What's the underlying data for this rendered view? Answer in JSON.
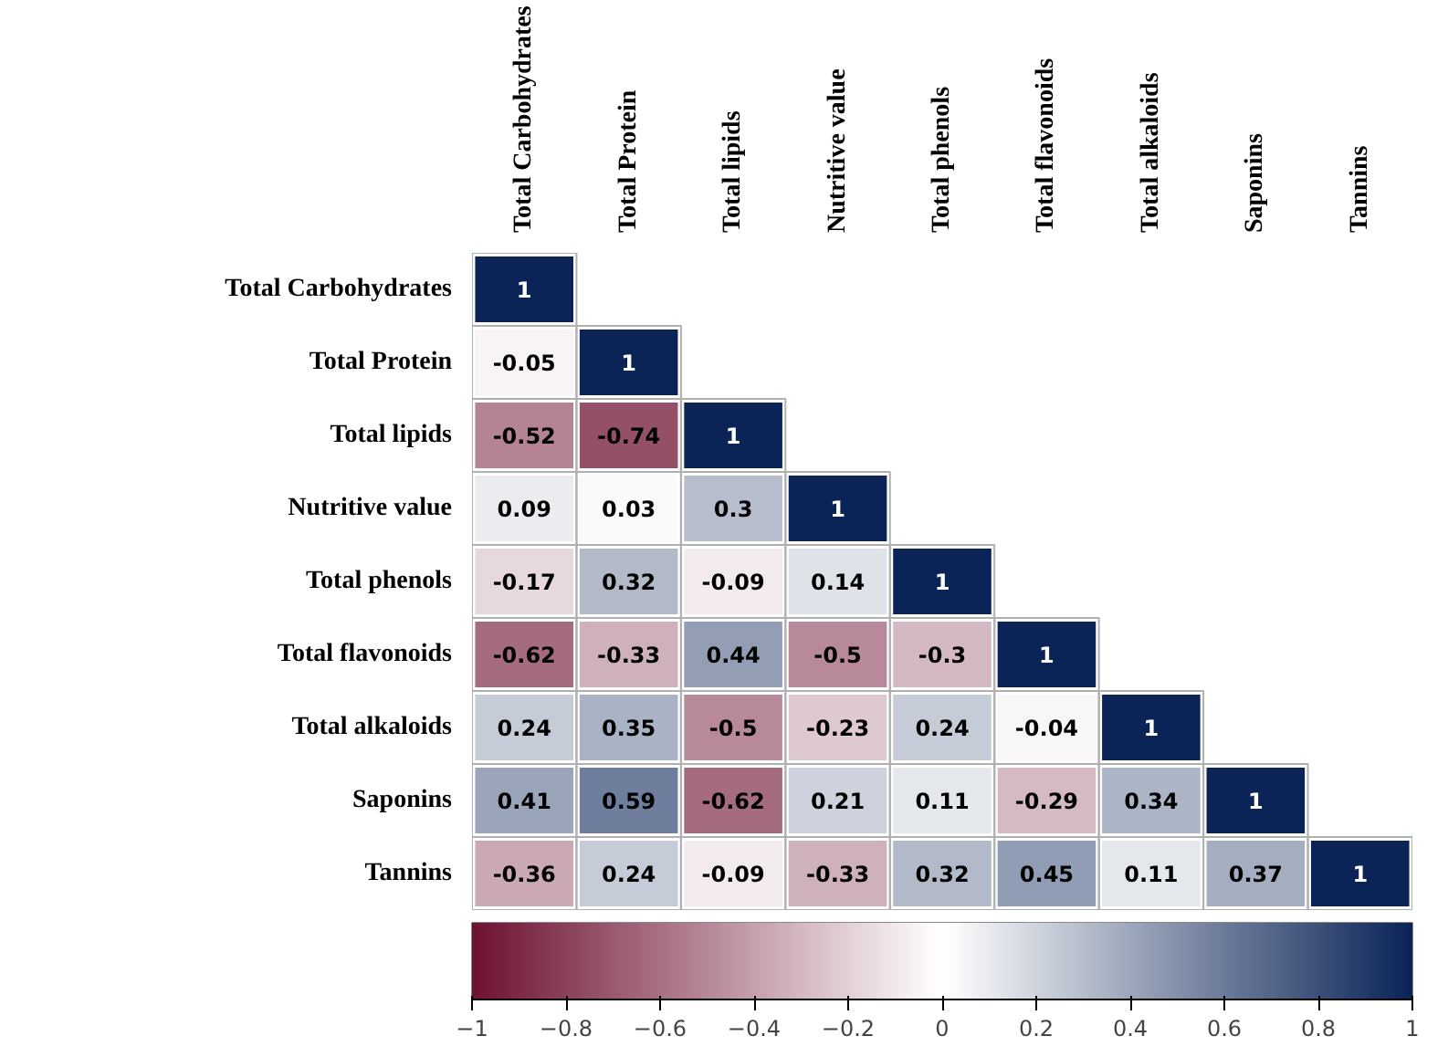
{
  "chart_data": {
    "type": "heatmap",
    "categories": [
      "Total Carbohydrates",
      "Total Protein",
      "Total lipids",
      "Nutritive value",
      "Total phenols",
      "Total flavonoids",
      "Total alkaloids",
      "Saponins",
      "Tannins"
    ],
    "y_categories": [
      "Total Carbohydrates",
      "Total Protein",
      "Total lipids",
      "Nutritive value",
      "Total phenols",
      "Total flavonoids",
      "Total alkaloids",
      "Saponins",
      "Tannins"
    ],
    "cells": [
      [
        1,
        null,
        null,
        null,
        null,
        null,
        null,
        null,
        null
      ],
      [
        -0.05,
        1,
        null,
        null,
        null,
        null,
        null,
        null,
        null
      ],
      [
        -0.52,
        -0.74,
        1,
        null,
        null,
        null,
        null,
        null,
        null
      ],
      [
        0.09,
        0.03,
        0.3,
        1,
        null,
        null,
        null,
        null,
        null
      ],
      [
        -0.17,
        0.32,
        -0.09,
        0.14,
        1,
        null,
        null,
        null,
        null
      ],
      [
        -0.62,
        -0.33,
        0.44,
        -0.5,
        -0.3,
        1,
        null,
        null,
        null
      ],
      [
        0.24,
        0.35,
        -0.5,
        -0.23,
        0.24,
        -0.04,
        1,
        null,
        null
      ],
      [
        0.41,
        0.59,
        -0.62,
        0.21,
        0.11,
        -0.29,
        0.34,
        1,
        null
      ],
      [
        -0.36,
        0.24,
        -0.09,
        -0.33,
        0.32,
        0.45,
        0.11,
        0.37,
        1
      ]
    ],
    "data_labels": true,
    "clim": [
      -1,
      1
    ],
    "cticks": [
      -1,
      -0.8,
      -0.6,
      -0.4,
      -0.2,
      0,
      0.2,
      0.4,
      0.6,
      0.8,
      1
    ]
  }
}
